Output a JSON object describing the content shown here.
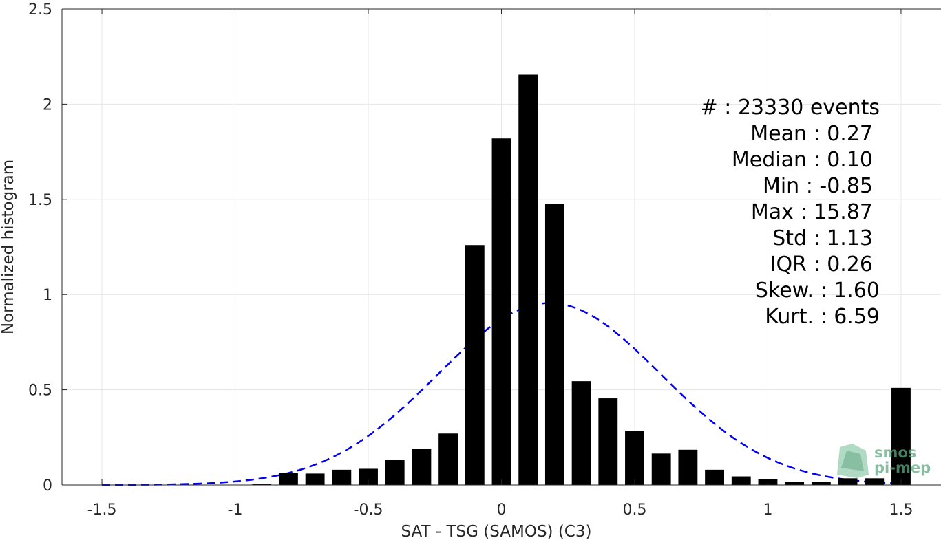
{
  "chart_data": {
    "type": "bar",
    "xlabel": "SAT - TSG (SAMOS) (C3)",
    "ylabel": "Normalized histogram",
    "xlim": [
      -1.65,
      1.65
    ],
    "ylim": [
      0,
      2.5
    ],
    "xticks": [
      -1.5,
      -1,
      -0.5,
      0,
      0.5,
      1,
      1.5
    ],
    "xtick_labels": [
      "-1.5",
      "-1",
      "-0.5",
      "0",
      "0.5",
      "1",
      "1.5"
    ],
    "yticks": [
      0,
      0.5,
      1,
      1.5,
      2,
      2.5
    ],
    "ytick_labels": [
      "0",
      "0.5",
      "1",
      "1.5",
      "2",
      "2.5"
    ],
    "grid": true,
    "bar_color": "#000000",
    "bars": {
      "x": [
        -0.9,
        -0.8,
        -0.7,
        -0.6,
        -0.5,
        -0.4,
        -0.3,
        -0.2,
        -0.1,
        0.0,
        0.1,
        0.2,
        0.3,
        0.4,
        0.5,
        0.6,
        0.7,
        0.8,
        0.9,
        1.0,
        1.1,
        1.2,
        1.3,
        1.4,
        1.5
      ],
      "values": [
        0.005,
        0.065,
        0.06,
        0.08,
        0.085,
        0.13,
        0.19,
        0.27,
        1.26,
        1.82,
        2.155,
        1.475,
        0.545,
        0.455,
        0.285,
        0.165,
        0.185,
        0.08,
        0.045,
        0.03,
        0.015,
        0.015,
        0.035,
        0.035,
        0.51
      ]
    },
    "fit_curve": {
      "type": "normal",
      "color": "#0000ee",
      "style": "dashed",
      "mean": 0.18,
      "peak": 0.955,
      "sigma": 0.42,
      "x_range": [
        -1.5,
        1.5
      ]
    },
    "stats": [
      {
        "label": "#  : 23330 events"
      },
      {
        "label": "Mean : 0.27"
      },
      {
        "label": "Median : 0.10"
      },
      {
        "label": "Min : -0.85"
      },
      {
        "label": "Max : 15.87"
      },
      {
        "label": "Std : 1.13"
      },
      {
        "label": "IQR : 0.26"
      },
      {
        "label": "Skew. : 1.60"
      },
      {
        "label": "Kurt. : 6.59"
      }
    ]
  },
  "logo": {
    "line1": "smos",
    "line2": "pi-mep",
    "color": "#5fa982"
  }
}
